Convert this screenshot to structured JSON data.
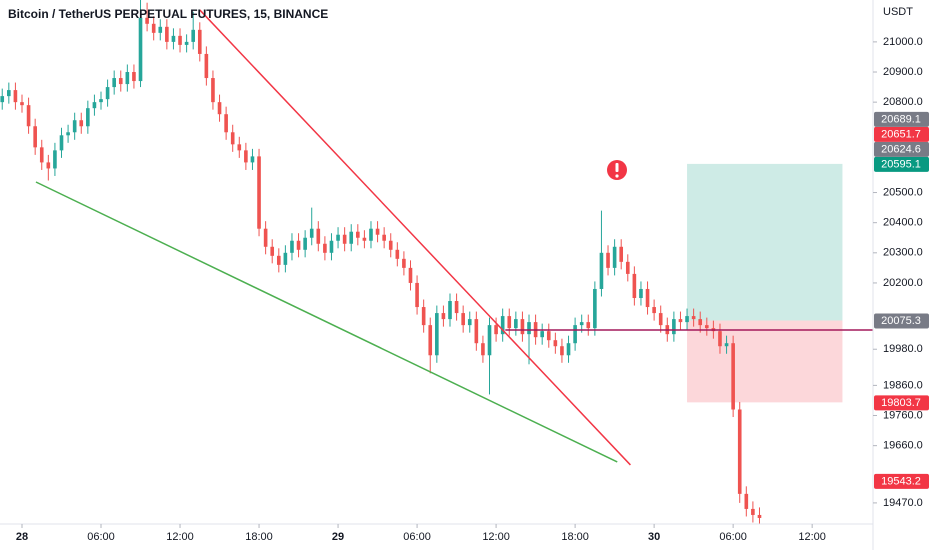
{
  "chart_data": {
    "type": "candlestick",
    "title": "Bitcoin / TetherUS PERPETUAL FUTURES, 15, BINANCE",
    "currency": "USDT",
    "up_color": "#26a69a",
    "down_color": "#ef5350",
    "x": [
      -1.5,
      -1,
      -0.5,
      0,
      0.5,
      1,
      1.5,
      2,
      2.5,
      3,
      3.5,
      4,
      4.5,
      5,
      5.5,
      6,
      6.5,
      7,
      7.5,
      8,
      8.5,
      9,
      9.5,
      10,
      10.5,
      11,
      11.5,
      12,
      12.5,
      13,
      13.5,
      14,
      14.5,
      15,
      15.5,
      16,
      16.5,
      17,
      17.5,
      18,
      18.5,
      19,
      19.5,
      20,
      20.5,
      21,
      21.5,
      22,
      22.5,
      23,
      23.5,
      24,
      24.5,
      25,
      25.5,
      26,
      26.5,
      27,
      27.5,
      28,
      28.5,
      29,
      29.5,
      30,
      30.5,
      31,
      31.5,
      32,
      32.5,
      33,
      33.5,
      34,
      34.5,
      35,
      35.5,
      36,
      36.5,
      37,
      37.5,
      38,
      38.5,
      39,
      39.5,
      40,
      40.5,
      41,
      41.5,
      42,
      42.5,
      43,
      43.5,
      44,
      44.5,
      45,
      45.5,
      46,
      46.5,
      47,
      47.5,
      48,
      48.5,
      49,
      49.5,
      50,
      50.5,
      51,
      51.5,
      52,
      52.5,
      53,
      53.5,
      54,
      54.5,
      55,
      55.5,
      56
    ],
    "open": [
      20800,
      20820,
      20840,
      20800,
      20790,
      20720,
      20650,
      20600,
      20580,
      20640,
      20690,
      20700,
      20740,
      20720,
      20780,
      20800,
      20810,
      20850,
      20880,
      20860,
      20900,
      20870,
      21080,
      21060,
      21030,
      21050,
      21000,
      21020,
      20990,
      21000,
      21040,
      20960,
      20880,
      20800,
      20760,
      20700,
      20660,
      20640,
      20600,
      20620,
      20380,
      20320,
      20290,
      20260,
      20300,
      20340,
      20310,
      20350,
      20380,
      20330,
      20300,
      20340,
      20360,
      20330,
      20370,
      20350,
      20340,
      20380,
      20360,
      20340,
      20310,
      20280,
      20250,
      20200,
      20120,
      20060,
      19960,
      20100,
      20080,
      20140,
      20100,
      20060,
      20080,
      20000,
      19960,
      20060,
      20030,
      20090,
      20050,
      20080,
      20030,
      20070,
      20020,
      20040,
      20010,
      19990,
      19960,
      20000,
      20060,
      20070,
      20050,
      20180,
      20300,
      20250,
      20320,
      20270,
      20230,
      20150,
      20180,
      20120,
      20100,
      20060,
      20030,
      20080,
      20070,
      20090,
      20080,
      20060,
      20050,
      20040,
      19990,
      20000,
      19780,
      19500,
      19450,
      19430
    ],
    "high": [
      20845,
      20865,
      20865,
      20825,
      20815,
      20745,
      20675,
      20625,
      20665,
      20715,
      20725,
      20765,
      20765,
      20805,
      20825,
      20835,
      20875,
      20905,
      20905,
      20925,
      20925,
      21150,
      21130,
      21085,
      21075,
      21075,
      21045,
      21045,
      21025,
      21100,
      21065,
      20985,
      20905,
      20825,
      20785,
      20725,
      20685,
      20665,
      20645,
      20645,
      20405,
      20345,
      20315,
      20325,
      20365,
      20365,
      20375,
      20450,
      20405,
      20355,
      20365,
      20385,
      20385,
      20395,
      20395,
      20375,
      20405,
      20405,
      20385,
      20365,
      20335,
      20305,
      20275,
      20225,
      20145,
      20085,
      20125,
      20125,
      20165,
      20165,
      20125,
      20105,
      20105,
      20025,
      20085,
      20085,
      20115,
      20115,
      20105,
      20105,
      20095,
      20095,
      20065,
      20065,
      20035,
      20015,
      20025,
      20085,
      20095,
      20095,
      20205,
      20440,
      20325,
      20345,
      20345,
      20295,
      20255,
      20205,
      20205,
      20145,
      20125,
      20085,
      20105,
      20105,
      20115,
      20115,
      20105,
      20085,
      20075,
      20065,
      20025,
      20025,
      19805,
      19525,
      19475,
      19455
    ],
    "low": [
      20775,
      20795,
      20775,
      20765,
      20695,
      20625,
      20575,
      20540,
      20555,
      20615,
      20665,
      20675,
      20695,
      20695,
      20755,
      20775,
      20785,
      20825,
      20835,
      20835,
      20845,
      20850,
      21035,
      21005,
      21005,
      20975,
      20975,
      20965,
      20965,
      20975,
      20935,
      20855,
      20775,
      20735,
      20675,
      20635,
      20615,
      20575,
      20575,
      20355,
      20295,
      20265,
      20235,
      20235,
      20275,
      20285,
      20285,
      20325,
      20305,
      20275,
      20275,
      20315,
      20305,
      20305,
      20325,
      20315,
      20315,
      20335,
      20315,
      20285,
      20255,
      20225,
      20175,
      20095,
      20035,
      19900,
      19935,
      20055,
      20055,
      20075,
      20035,
      20035,
      19975,
      19935,
      19830,
      20005,
      20005,
      20025,
      20025,
      20005,
      19930,
      19995,
      19995,
      19985,
      19965,
      19935,
      19935,
      19975,
      20035,
      20025,
      20025,
      20155,
      20225,
      20225,
      20245,
      20205,
      20125,
      20125,
      20095,
      20075,
      20035,
      20005,
      20005,
      20045,
      20045,
      20055,
      20035,
      20025,
      20015,
      19965,
      19965,
      19755,
      19470,
      19425,
      19405,
      19400
    ],
    "close": [
      20820,
      20840,
      20800,
      20790,
      20720,
      20650,
      20600,
      20580,
      20640,
      20690,
      20700,
      20740,
      20720,
      20780,
      20800,
      20810,
      20850,
      20880,
      20860,
      20900,
      20870,
      21080,
      21060,
      21030,
      21050,
      21000,
      21020,
      20990,
      21000,
      21040,
      20960,
      20880,
      20800,
      20760,
      20700,
      20660,
      20640,
      20600,
      20620,
      20380,
      20320,
      20290,
      20260,
      20300,
      20340,
      20310,
      20350,
      20380,
      20330,
      20300,
      20340,
      20360,
      20330,
      20370,
      20350,
      20340,
      20380,
      20360,
      20340,
      20310,
      20280,
      20250,
      20200,
      20120,
      20060,
      19960,
      20100,
      20080,
      20140,
      20100,
      20060,
      20080,
      20000,
      19960,
      20060,
      20030,
      20090,
      20050,
      20080,
      20030,
      20070,
      20020,
      20040,
      20010,
      19990,
      19960,
      20000,
      20060,
      20070,
      20050,
      20180,
      20300,
      20250,
      20320,
      20270,
      20230,
      20150,
      20180,
      20120,
      20100,
      20060,
      20030,
      20080,
      20070,
      20090,
      20080,
      20060,
      20050,
      20040,
      19990,
      20000,
      19780,
      19500,
      19450,
      19430,
      19420
    ],
    "xlim": [
      -1.67,
      64.62
    ],
    "xticks": [
      {
        "value": 0,
        "label": "28"
      },
      {
        "value": 6,
        "label": "06:00"
      },
      {
        "value": 12,
        "label": "12:00"
      },
      {
        "value": 18,
        "label": "18:00"
      },
      {
        "value": 24,
        "label": "29"
      },
      {
        "value": 30,
        "label": "06:00"
      },
      {
        "value": 36,
        "label": "12:00"
      },
      {
        "value": 42,
        "label": "18:00"
      },
      {
        "value": 48,
        "label": "30"
      },
      {
        "value": 54,
        "label": "06:00"
      },
      {
        "value": 60,
        "label": "12:00"
      }
    ],
    "ylim": [
      19400,
      21139
    ],
    "yticks": [
      {
        "value": 21000,
        "label": "21000.0"
      },
      {
        "value": 20900,
        "label": "20900.0"
      },
      {
        "value": 20800,
        "label": "20800.0"
      },
      {
        "value": 20500,
        "label": "20500.0"
      },
      {
        "value": 20400,
        "label": "20400.0"
      },
      {
        "value": 20300,
        "label": "20300.0"
      },
      {
        "value": 20200,
        "label": "20200.0"
      },
      {
        "value": 19980,
        "label": "19980.0"
      },
      {
        "value": 19860,
        "label": "19860.0"
      },
      {
        "value": 19760,
        "label": "19760.0"
      },
      {
        "value": 19660,
        "label": "19660.0"
      },
      {
        "value": 19470,
        "label": "19470.0"
      }
    ],
    "price_labels": [
      {
        "value": 20689.1,
        "label": "20689.1",
        "color": "#787b86"
      },
      {
        "value": 20651.7,
        "label": "20651.7",
        "color": "#f23645"
      },
      {
        "value": 20624.6,
        "label": "20624.6",
        "color": "#787b86"
      },
      {
        "value": 20595.1,
        "label": "20595.1",
        "color": "#089981"
      },
      {
        "value": 20075.3,
        "label": "20075.3",
        "color": "#787b86"
      },
      {
        "value": 19803.7,
        "label": "19803.7",
        "color": "#f23645"
      },
      {
        "value": 19543.2,
        "label": "19543.2",
        "color": "#f23645"
      }
    ],
    "trendlines": [
      {
        "color": "#4caf50",
        "points": [
          [
            1.06,
            20535
          ],
          [
            45.2,
            19606
          ]
        ]
      },
      {
        "color": "#f23645",
        "points": [
          [
            13.5,
            21106
          ],
          [
            46.2,
            19596
          ]
        ]
      }
    ],
    "horizontal_line": {
      "price": 20044,
      "start": 36.7,
      "color": "#a3195b"
    },
    "position": {
      "start": 50.5,
      "end": 62.3,
      "entry": 20075.3,
      "target": 20595.1,
      "stop": 19803.7
    }
  }
}
